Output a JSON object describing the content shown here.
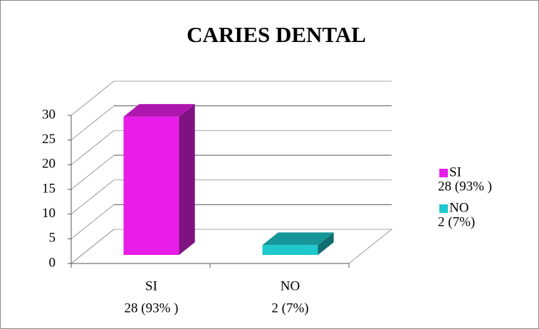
{
  "chart_data": {
    "type": "bar3d",
    "title": "CARIES DENTAL",
    "categories": [
      "SI",
      "NO"
    ],
    "values": [
      28,
      2
    ],
    "value_labels": [
      "28 (93% )",
      "2 (7%)"
    ],
    "colors": [
      "#e81ee8",
      "#1ec8cc"
    ],
    "ylim": [
      0,
      30
    ],
    "yticks": [
      0,
      5,
      10,
      15,
      20,
      25,
      30
    ],
    "grid": true,
    "legend": "right"
  }
}
